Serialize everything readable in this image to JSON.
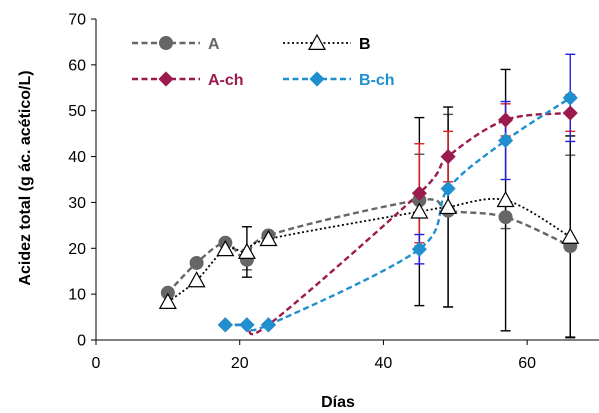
{
  "chart_data": {
    "type": "line",
    "xlabel": "Días",
    "ylabel": "Acidez total (g ác. acético/L)",
    "xlim": [
      0,
      70
    ],
    "ylim": [
      0,
      70
    ],
    "xticks": [
      0,
      20,
      40,
      60
    ],
    "yticks": [
      0,
      10,
      20,
      30,
      40,
      50,
      60,
      70
    ],
    "grid": false,
    "legend": {
      "placement": "top-left"
    },
    "series": [
      {
        "name": "A",
        "color": "#666666",
        "line": "dashed",
        "marker": "circle",
        "marker_fill": "#666666",
        "error_color": "#555555",
        "x": [
          10,
          14,
          18,
          21,
          24,
          45,
          49,
          57,
          66
        ],
        "y": [
          10.3,
          16.8,
          21.2,
          17.5,
          22.8,
          30.5,
          28.2,
          26.8,
          20.5
        ],
        "err": [
          0,
          0,
          0,
          2.2,
          0,
          10.0,
          21.0,
          2.5,
          19.8
        ]
      },
      {
        "name": "B",
        "color": "#000000",
        "line": "dotted",
        "marker": "triangle",
        "marker_fill": "#ffffff",
        "error_color": "#000000",
        "x": [
          10,
          14,
          18,
          21,
          24,
          45,
          49,
          57,
          66
        ],
        "y": [
          8.3,
          13.0,
          19.8,
          19.2,
          22.0,
          28.0,
          29.0,
          30.5,
          22.5
        ],
        "err": [
          0,
          0,
          0,
          5.5,
          0,
          20.5,
          21.8,
          28.5,
          22.0
        ]
      },
      {
        "name": "A-ch",
        "color": "#9B1B4E",
        "line": "dashed",
        "marker": "diamond",
        "marker_fill": "#9B1B4E",
        "error_color": "#E02020",
        "x": [
          18,
          21,
          24,
          45,
          49,
          57,
          66
        ],
        "y": [
          3.3,
          3.3,
          3.3,
          32.0,
          40.0,
          48.0,
          49.5
        ],
        "err": [
          0,
          0,
          0,
          10.8,
          5.5,
          3.5,
          4.0
        ]
      },
      {
        "name": "B-ch",
        "color": "#1F8FD0",
        "line": "dashed",
        "marker": "diamond",
        "marker_fill": "#1F8FD0",
        "error_color": "#2020E0",
        "x": [
          18,
          21,
          24,
          45,
          49,
          57,
          66
        ],
        "y": [
          3.3,
          3.3,
          3.3,
          19.8,
          33.0,
          43.5,
          52.8
        ],
        "err": [
          0,
          0,
          0,
          3.2,
          0,
          8.5,
          9.5
        ]
      }
    ]
  }
}
